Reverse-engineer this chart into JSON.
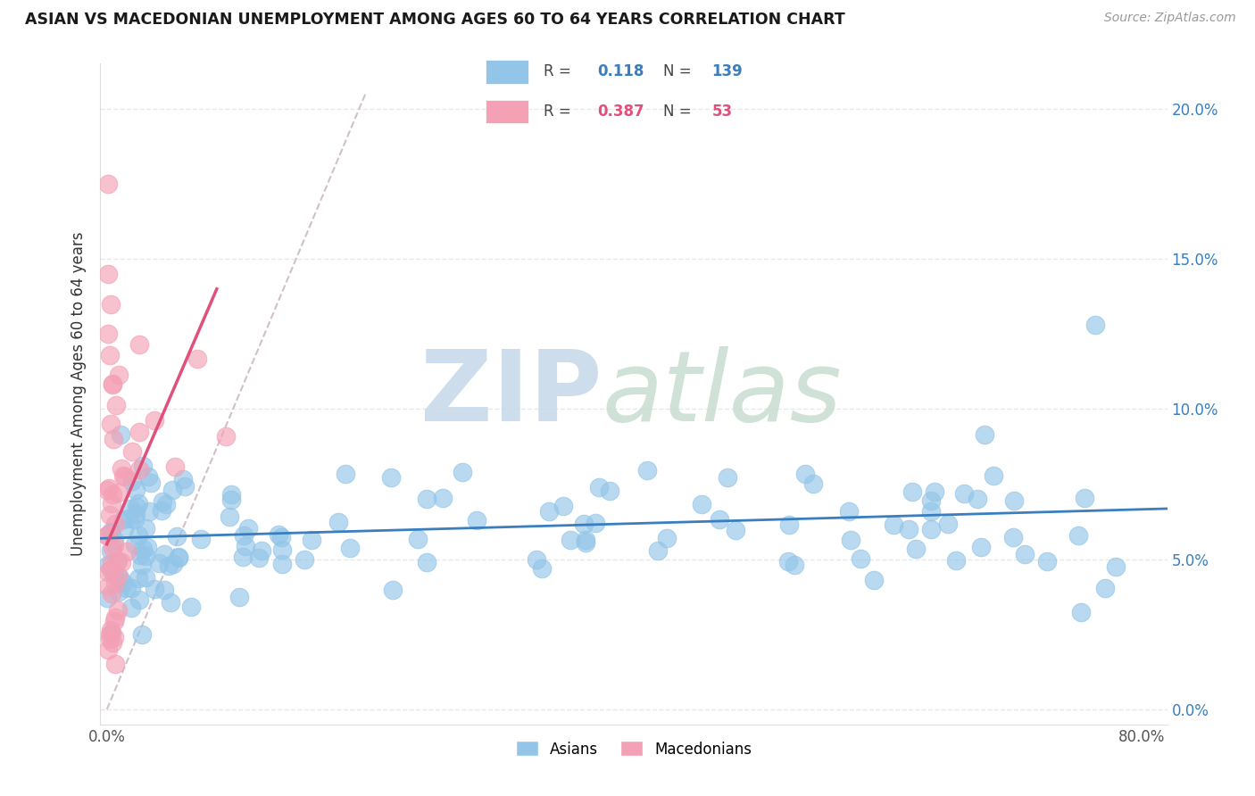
{
  "title": "ASIAN VS MACEDONIAN UNEMPLOYMENT AMONG AGES 60 TO 64 YEARS CORRELATION CHART",
  "source": "Source: ZipAtlas.com",
  "ylabel": "Unemployment Among Ages 60 to 64 years",
  "xlim": [
    -0.005,
    0.82
  ],
  "ylim": [
    -0.005,
    0.215
  ],
  "xtick_positions": [
    0.0,
    0.8
  ],
  "xtick_labels": [
    "0.0%",
    "80.0%"
  ],
  "ytick_positions": [
    0.0,
    0.05,
    0.1,
    0.15,
    0.2
  ],
  "ytick_labels": [
    "0.0%",
    "5.0%",
    "10.0%",
    "15.0%",
    "20.0%"
  ],
  "asian_R": 0.118,
  "asian_N": 139,
  "macedonian_R": 0.387,
  "macedonian_N": 53,
  "asian_color": "#92c5e8",
  "macedonian_color": "#f4a0b5",
  "asian_line_color": "#3a7ebf",
  "macedonian_line_color": "#e0507a",
  "ref_line_color": "#d0c0c8",
  "watermark": "ZIPatlas",
  "watermark_color_zip": "#b0cce0",
  "watermark_color_atlas": "#c8d8d0",
  "background_color": "#ffffff",
  "grid_color": "#e8e8e8",
  "title_color": "#1a1a1a",
  "source_color": "#999999",
  "ylabel_color": "#333333",
  "tick_color": "#555555",
  "right_tick_color": "#3a7ebf",
  "legend_bg": "#eef5fc",
  "legend_border": "#c8ddef"
}
